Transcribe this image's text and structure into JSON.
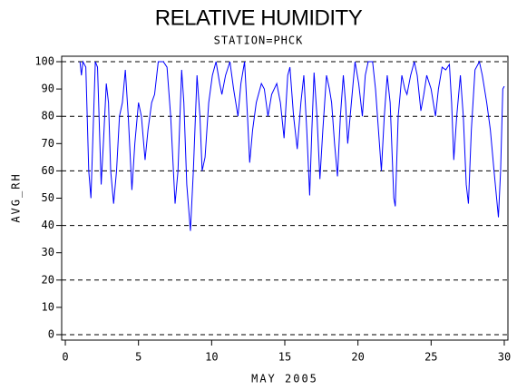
{
  "chart_data": {
    "type": "line",
    "title": "RELATIVE HUMIDITY",
    "subtitle": "STATION=PHCK",
    "x_label": "MAY 2005",
    "y_label": "AVG_RH",
    "xlim": [
      -0.25,
      30.25
    ],
    "ylim": [
      -2,
      102
    ],
    "xticks": [
      0,
      5,
      10,
      15,
      20,
      25,
      30
    ],
    "yticks": [
      0,
      10,
      20,
      30,
      40,
      50,
      60,
      70,
      80,
      90,
      100
    ],
    "ygrid": [
      0,
      20,
      40,
      60,
      80,
      100
    ],
    "grid_style": "dashed",
    "x": [
      1.0,
      1.1,
      1.2,
      1.4,
      1.6,
      1.75,
      1.9,
      2.05,
      2.2,
      2.45,
      2.6,
      2.8,
      2.95,
      3.1,
      3.3,
      3.5,
      3.7,
      3.9,
      4.1,
      4.3,
      4.55,
      4.75,
      5.0,
      5.2,
      5.45,
      5.65,
      5.9,
      6.1,
      6.35,
      6.7,
      6.95,
      7.2,
      7.5,
      7.7,
      7.95,
      8.1,
      8.3,
      8.55,
      8.75,
      9.0,
      9.2,
      9.35,
      9.55,
      9.8,
      10.05,
      10.3,
      10.55,
      10.7,
      10.95,
      11.25,
      11.5,
      11.8,
      12.0,
      12.25,
      12.45,
      12.6,
      12.8,
      13.05,
      13.4,
      13.6,
      13.85,
      14.1,
      14.45,
      14.7,
      14.95,
      15.2,
      15.35,
      15.6,
      15.85,
      16.1,
      16.3,
      16.5,
      16.7,
      16.85,
      17.0,
      17.2,
      17.4,
      17.6,
      17.85,
      18.05,
      18.2,
      18.4,
      18.6,
      18.8,
      19.0,
      19.15,
      19.3,
      19.55,
      19.8,
      20.05,
      20.3,
      20.5,
      20.7,
      21.0,
      21.2,
      21.4,
      21.6,
      21.8,
      22.0,
      22.2,
      22.45,
      22.55,
      22.75,
      23.0,
      23.2,
      23.35,
      23.6,
      23.85,
      24.05,
      24.3,
      24.5,
      24.7,
      25.0,
      25.3,
      25.5,
      25.75,
      26.0,
      26.25,
      26.4,
      26.55,
      26.75,
      27.0,
      27.2,
      27.4,
      27.55,
      27.75,
      28.0,
      28.3,
      28.5,
      28.8,
      29.05,
      29.3,
      29.6,
      29.75,
      29.9,
      30.0
    ],
    "series": [
      {
        "name": "AVG_RH",
        "color": "#0000ff",
        "values": [
          100,
          95,
          100,
          98,
          60,
          50,
          75,
          100,
          98,
          55,
          70,
          92,
          85,
          60,
          48,
          60,
          80,
          85,
          97,
          80,
          53,
          70,
          85,
          80,
          64,
          75,
          85,
          88,
          100,
          100,
          98,
          80,
          48,
          60,
          97,
          85,
          55,
          38,
          60,
          95,
          80,
          60,
          65,
          85,
          95,
          100,
          92,
          88,
          95,
          100,
          90,
          80,
          92,
          100,
          80,
          63,
          75,
          85,
          92,
          90,
          80,
          88,
          92,
          85,
          72,
          95,
          98,
          80,
          68,
          85,
          95,
          75,
          51,
          75,
          96,
          80,
          57,
          75,
          95,
          90,
          85,
          70,
          58,
          80,
          95,
          85,
          70,
          85,
          100,
          92,
          80,
          95,
          100,
          100,
          90,
          75,
          60,
          80,
          95,
          85,
          50,
          47,
          80,
          95,
          90,
          88,
          95,
          100,
          95,
          82,
          88,
          95,
          90,
          80,
          90,
          98,
          97,
          99,
          85,
          64,
          80,
          95,
          80,
          55,
          48,
          75,
          97,
          100,
          95,
          85,
          75,
          60,
          43,
          60,
          90,
          91
        ]
      }
    ]
  }
}
